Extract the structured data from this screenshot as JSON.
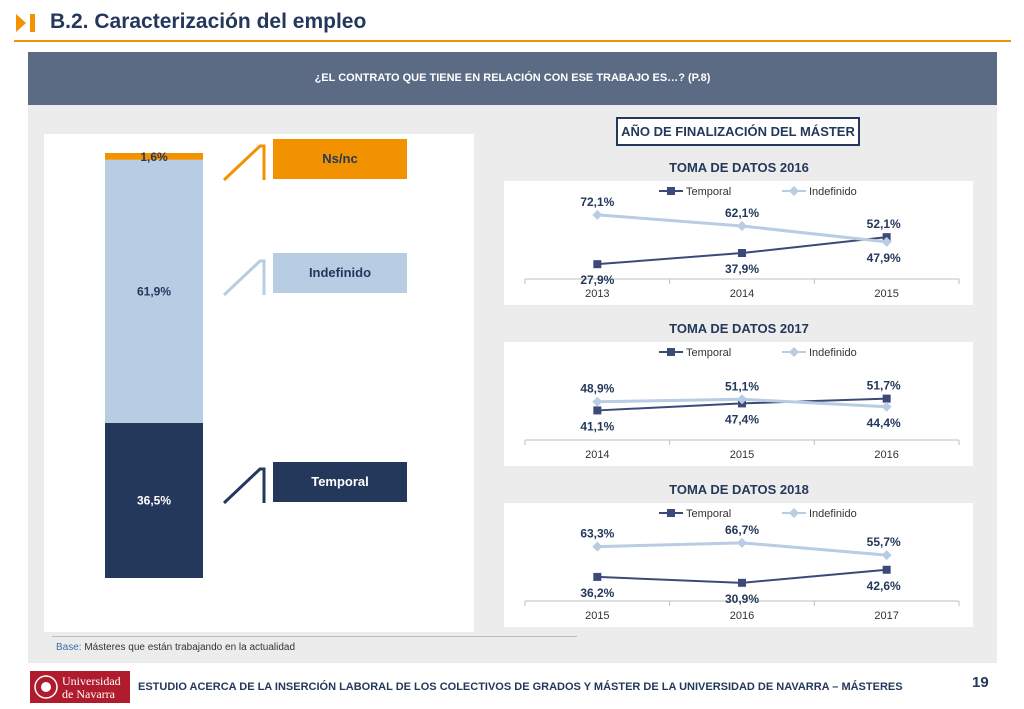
{
  "header": {
    "title": "B.2. Caracterización del empleo",
    "colors": {
      "accent": "#f39200",
      "navy": "#24385b"
    }
  },
  "banner": {
    "question": "¿EL CONTRATO QUE TIENE EN RELACIÓN CON ESE TRABAJO ES…? (P.8)"
  },
  "right_section": {
    "title": "AÑO DE FINALIZACIÓN DEL MÁSTER"
  },
  "legend_boxes": {
    "nsnc": "Ns/nc",
    "indefinido": "Indefinido",
    "temporal": "Temporal"
  },
  "base": {
    "key": "Base:",
    "text": " Másteres que están trabajando en la actualidad"
  },
  "footer": {
    "logo_line1": "Universidad",
    "logo_line2": "de Navarra",
    "text": "ESTUDIO ACERCA DE LA INSERCIÓN LABORAL DE LOS COLECTIVOS DE GRADOS Y MÁSTER DE LA UNIVERSIDAD DE NAVARRA – MÁSTERES",
    "page": "19"
  },
  "chart_data": [
    {
      "type": "bar",
      "stacked": true,
      "segments": [
        {
          "name": "Temporal",
          "value": 36.5,
          "label": "36,5%",
          "color": "#24385b"
        },
        {
          "name": "Indefinido",
          "value": 61.9,
          "label": "61,9%",
          "color": "#b8cce4"
        },
        {
          "name": "Ns/nc",
          "value": 1.6,
          "label": "1,6%",
          "color": "#f39200"
        }
      ]
    },
    {
      "type": "line",
      "title": "TOMA DE DATOS 2016",
      "categories": [
        "2013",
        "2014",
        "2015"
      ],
      "ylim": [
        0,
        100
      ],
      "series": [
        {
          "name": "Temporal",
          "values": [
            27.9,
            37.9,
            52.1
          ],
          "labels": [
            "27,9%",
            "37,9%",
            "52,1%"
          ],
          "color": "#3d4a78"
        },
        {
          "name": "Indefinido",
          "values": [
            72.1,
            62.1,
            47.9
          ],
          "labels": [
            "72,1%",
            "62,1%",
            "47,9%"
          ],
          "color": "#b8cce4"
        }
      ]
    },
    {
      "type": "line",
      "title": "TOMA DE DATOS 2017",
      "categories": [
        "2014",
        "2015",
        "2016"
      ],
      "ylim": [
        0,
        100
      ],
      "series": [
        {
          "name": "Temporal",
          "values": [
            41.1,
            47.4,
            51.7
          ],
          "labels": [
            "41,1%",
            "47,4%",
            "51,7%"
          ],
          "color": "#3d4a78"
        },
        {
          "name": "Indefinido",
          "values": [
            48.9,
            51.1,
            44.4
          ],
          "labels": [
            "48,9%",
            "51,1%",
            "44,4%"
          ],
          "color": "#b8cce4"
        }
      ]
    },
    {
      "type": "line",
      "title": "TOMA DE DATOS 2018",
      "categories": [
        "2015",
        "2016",
        "2017"
      ],
      "ylim": [
        0,
        100
      ],
      "series": [
        {
          "name": "Temporal",
          "values": [
            36.2,
            30.9,
            42.6
          ],
          "labels": [
            "36,2%",
            "30,9%",
            "42,6%"
          ],
          "color": "#3d4a78"
        },
        {
          "name": "Indefinido",
          "values": [
            63.3,
            66.7,
            55.7
          ],
          "labels": [
            "63,3%",
            "66,7%",
            "55,7%"
          ],
          "color": "#b8cce4"
        }
      ]
    }
  ]
}
